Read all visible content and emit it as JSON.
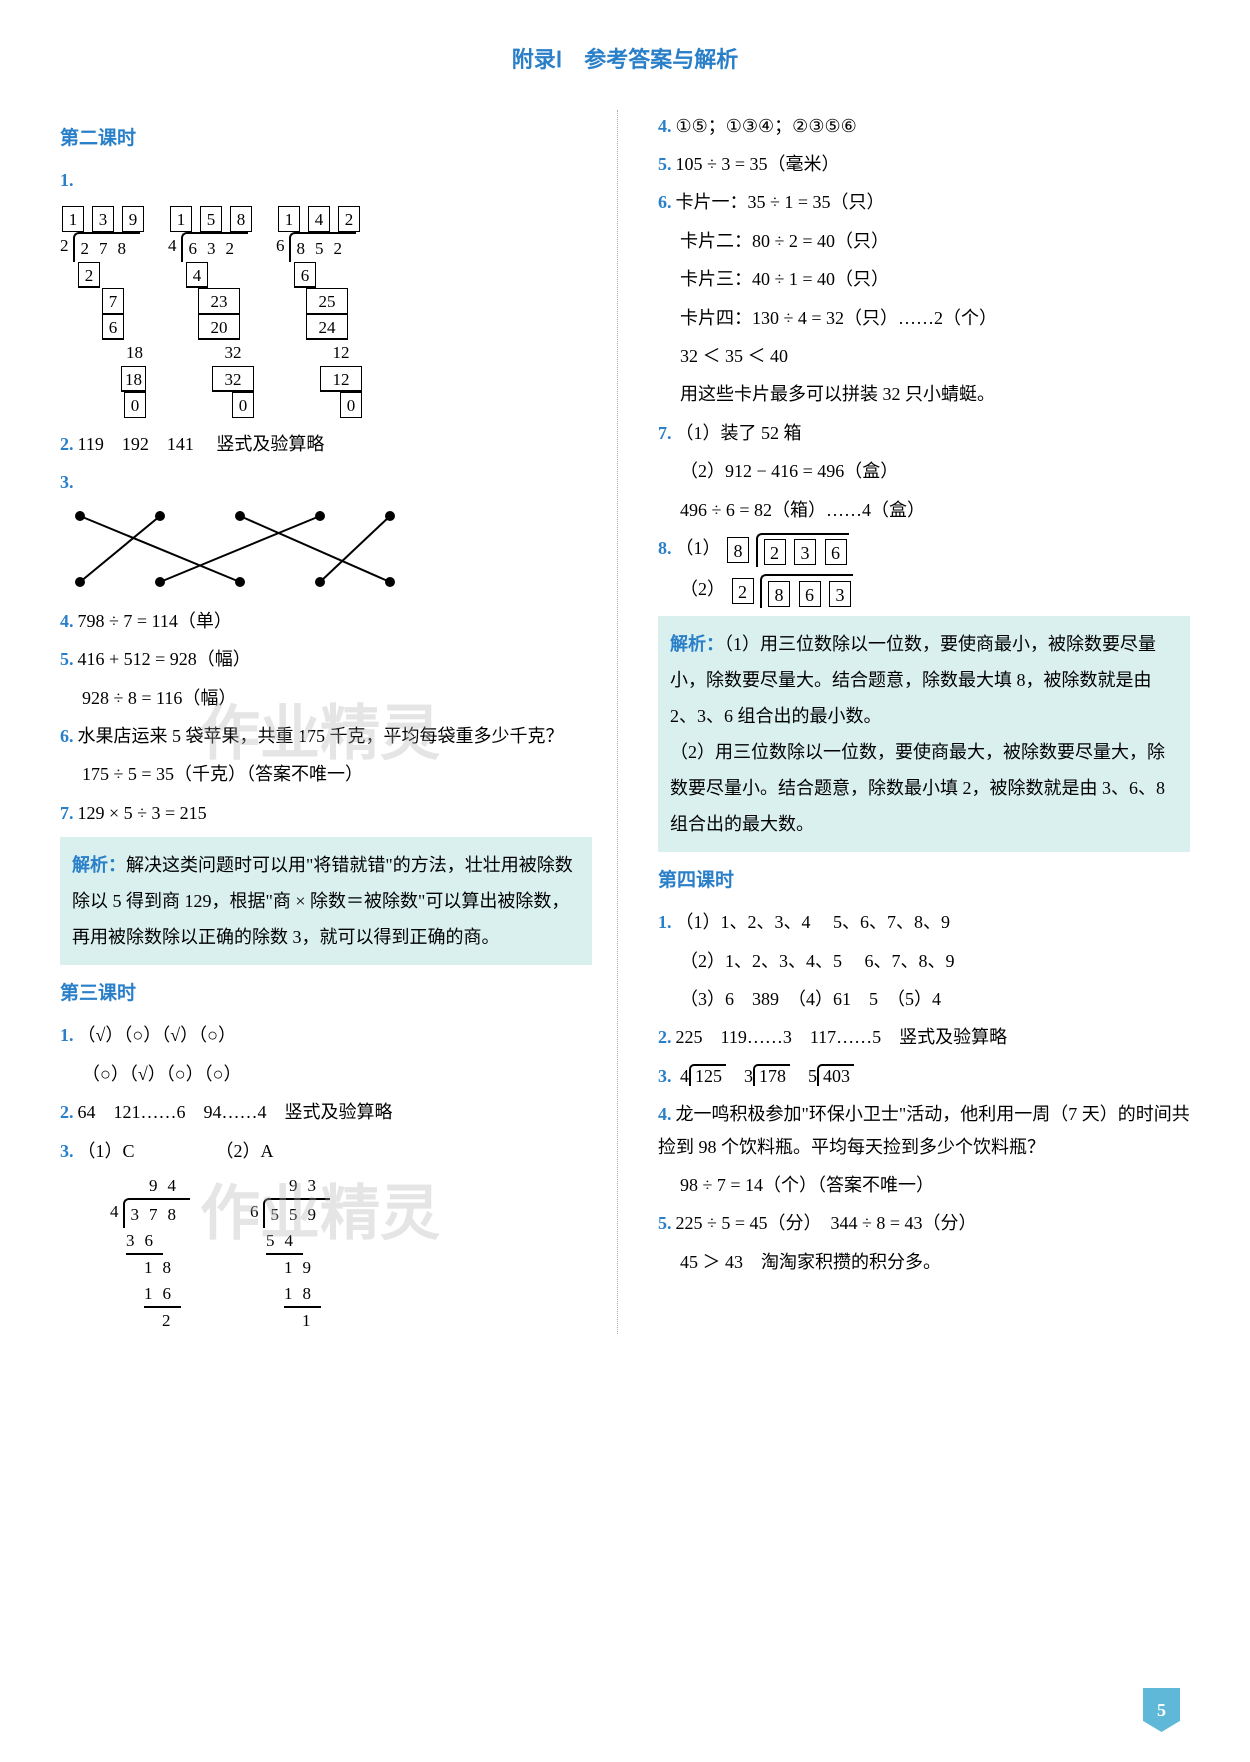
{
  "header": "附录Ⅰ　参考答案与解析",
  "pageNumber": "5",
  "watermark": "作业精灵",
  "left": {
    "section2": {
      "title": "第二课时",
      "q1_label": "1.",
      "longdiv1": {
        "quotient": [
          "1",
          "3",
          "9"
        ],
        "divisor": "2",
        "dividend": "278",
        "steps": [
          "2",
          "7",
          "6",
          "18",
          "18",
          "0"
        ]
      },
      "longdiv2": {
        "quotient": [
          "1",
          "5",
          "8"
        ],
        "divisor": "4",
        "dividend": "632",
        "steps": [
          "4",
          "23",
          "20",
          "32",
          "32",
          "0"
        ]
      },
      "longdiv3": {
        "quotient": [
          "1",
          "4",
          "2"
        ],
        "divisor": "6",
        "dividend": "852",
        "steps": [
          "6",
          "25",
          "24",
          "12",
          "12",
          "0"
        ]
      },
      "q2": "119　192　141　 竖式及验算略",
      "q3_label": "3.",
      "q4": "798 ÷ 7 = 114（单）",
      "q5_line1": "416 + 512 = 928（幅）",
      "q5_line2": "928 ÷ 8 = 116（幅）",
      "q6_line1": "水果店运来 5 袋苹果，共重 175 千克，平均每袋重多少千克？",
      "q6_line2": "175 ÷ 5 = 35（千克）（答案不唯一）",
      "q7": "129 × 5 ÷ 3 = 215",
      "analysis": "解决这类问题时可以用\"将错就错\"的方法，壮壮用被除数除以 5 得到商 129，根据\"商 × 除数＝被除数\"可以算出被除数，再用被除数除以正确的除数 3，就可以得到正确的商。",
      "analysis_label": "解析："
    },
    "section3": {
      "title": "第三课时",
      "q1_line1": "（√）（○）（√）（○）",
      "q1_line2": "（○）（√）（○）（○）",
      "q2": "64　121……6　94……4　竖式及验算略",
      "q3_label": "3.",
      "q3_1_label": "（1）C",
      "q3_2_label": "（2）A",
      "longdivA": {
        "quotient": "94",
        "divisor": "4",
        "dividend": "378",
        "steps": [
          {
            "v": "36",
            "ul": true,
            "pad": 0
          },
          {
            "v": "18",
            "ul": false,
            "pad": 1
          },
          {
            "v": "16",
            "ul": true,
            "pad": 1
          },
          {
            "v": "2",
            "ul": false,
            "pad": 2
          }
        ]
      },
      "longdivB": {
        "quotient": "93",
        "divisor": "6",
        "dividend": "559",
        "steps": [
          {
            "v": "54",
            "ul": true,
            "pad": 0
          },
          {
            "v": "19",
            "ul": false,
            "pad": 1
          },
          {
            "v": "18",
            "ul": true,
            "pad": 1
          },
          {
            "v": "1",
            "ul": false,
            "pad": 2
          }
        ]
      }
    }
  },
  "right": {
    "q4": "①⑤；①③④；②③⑤⑥",
    "q5": "105 ÷ 3 = 35（毫米）",
    "q6_lines": [
      "卡片一：35 ÷ 1 = 35（只）",
      "卡片二：80 ÷ 2 = 40（只）",
      "卡片三：40 ÷ 1 = 40（只）",
      "卡片四：130 ÷ 4 = 32（只）……2（个）",
      "32 ＜ 35 ＜ 40",
      "用这些卡片最多可以拼装 32 只小蜻蜓。"
    ],
    "q7_line1": "（1）装了 52 箱",
    "q7_line2": "（2）912 − 416 = 496（盒）",
    "q7_line3": "496 ÷ 6 = 82（箱）……4（盒）",
    "q8_label1": "（1）",
    "q8_1_divisor": "8",
    "q8_1_dividend": [
      "2",
      "3",
      "6"
    ],
    "q8_label2": "（2）",
    "q8_2_divisor": "2",
    "q8_2_dividend": [
      "8",
      "6",
      "3"
    ],
    "analysis_label": "解析：",
    "analysis": "（1）用三位数除以一位数，要使商最小，被除数要尽量小，除数要尽量大。结合题意，除数最大填 8，被除数就是由 2、3、6 组合出的最小数。\n（2）用三位数除以一位数，要使商最大，被除数要尽量大，除数要尽量小。结合题意，除数最小填 2，被除数就是由 3、6、8 组合出的最大数。",
    "section4": {
      "title": "第四课时",
      "q1_1": "（1）1、2、3、4　 5、6、7、8、9",
      "q1_2": "（2）1、2、3、4、5　 6、7、8、9",
      "q1_3": "（3）6　389　（4）61　5　（5）4",
      "q2": "225　119……3　117……5　竖式及验算略",
      "q3_label": "3.",
      "q3_divs": [
        {
          "divisor": "4",
          "dividend": "125"
        },
        {
          "divisor": "3",
          "dividend": "178"
        },
        {
          "divisor": "5",
          "dividend": "403"
        }
      ],
      "q4_line1": "龙一鸣积极参加\"环保小卫士\"活动，他利用一周（7 天）的时间共捡到 98 个饮料瓶。平均每天捡到多少个饮料瓶？",
      "q4_line2": "98 ÷ 7 = 14（个）（答案不唯一）",
      "q5_line1": "225 ÷ 5 = 45（分）　344 ÷ 8 = 43（分）",
      "q5_line2": "45 ＞ 43　淘淘家积攒的积分多。"
    }
  },
  "colors": {
    "accent": "#2a7fc9",
    "analysis_bg": "#d9f0ef",
    "pagenum_bg": "#5fb8d8",
    "watermark": "rgba(180,180,180,0.35)"
  }
}
